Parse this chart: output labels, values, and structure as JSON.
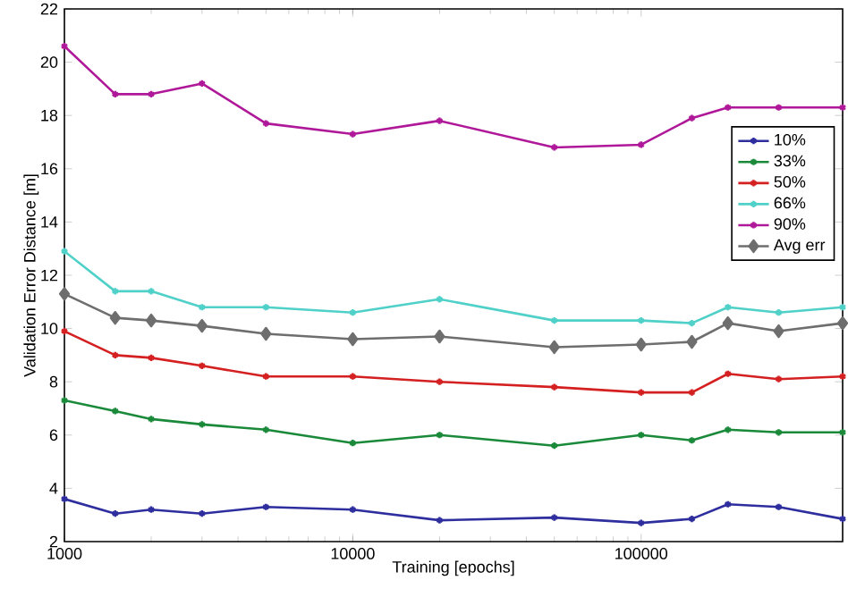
{
  "chart_data": {
    "type": "line",
    "xlabel": "Training [epochs]",
    "ylabel": "Validation Error Distance [m]",
    "log": "x",
    "xlim": [
      1000,
      500000
    ],
    "ylim": [
      2,
      22
    ],
    "xticks": [
      1000,
      10000,
      100000
    ],
    "yticks": [
      2,
      4,
      6,
      8,
      10,
      12,
      14,
      16,
      18,
      20,
      22
    ],
    "grid": false,
    "legend": "top right",
    "x": [
      1000,
      1500,
      2000,
      3000,
      5000,
      10000,
      20000,
      50000,
      100000,
      150000,
      200000,
      300000,
      500000
    ],
    "series": [
      {
        "name": "10%",
        "color": "#2e2e9e",
        "marker": "cross",
        "values": [
          3.6,
          3.05,
          3.2,
          3.05,
          3.3,
          3.2,
          2.8,
          2.9,
          2.7,
          2.85,
          3.4,
          3.3,
          2.85
        ]
      },
      {
        "name": "33%",
        "color": "#1a8a3a",
        "marker": "cross",
        "values": [
          7.3,
          6.9,
          6.6,
          6.4,
          6.2,
          5.7,
          6.0,
          5.6,
          6.0,
          5.8,
          6.2,
          6.1,
          6.1
        ]
      },
      {
        "name": "50%",
        "color": "#d42020",
        "marker": "cross",
        "values": [
          9.9,
          9.0,
          8.9,
          8.6,
          8.2,
          8.2,
          8.0,
          7.8,
          7.6,
          7.6,
          8.3,
          8.1,
          8.2
        ]
      },
      {
        "name": "66%",
        "color": "#4fd0c8",
        "marker": "cross",
        "values": [
          12.9,
          11.4,
          11.4,
          10.8,
          10.8,
          10.6,
          11.1,
          10.3,
          10.3,
          10.2,
          10.8,
          10.6,
          10.8
        ]
      },
      {
        "name": "90%",
        "color": "#b0189a",
        "marker": "cross",
        "values": [
          20.6,
          18.8,
          18.8,
          19.2,
          17.7,
          17.3,
          17.8,
          16.8,
          16.9,
          17.9,
          18.3,
          18.3,
          18.3
        ]
      },
      {
        "name": "Avg err",
        "color": "#6e6e6e",
        "marker": "diamond",
        "values": [
          11.3,
          10.4,
          10.3,
          10.1,
          9.8,
          9.6,
          9.7,
          9.3,
          9.4,
          9.5,
          10.2,
          9.9,
          10.2
        ]
      }
    ]
  }
}
